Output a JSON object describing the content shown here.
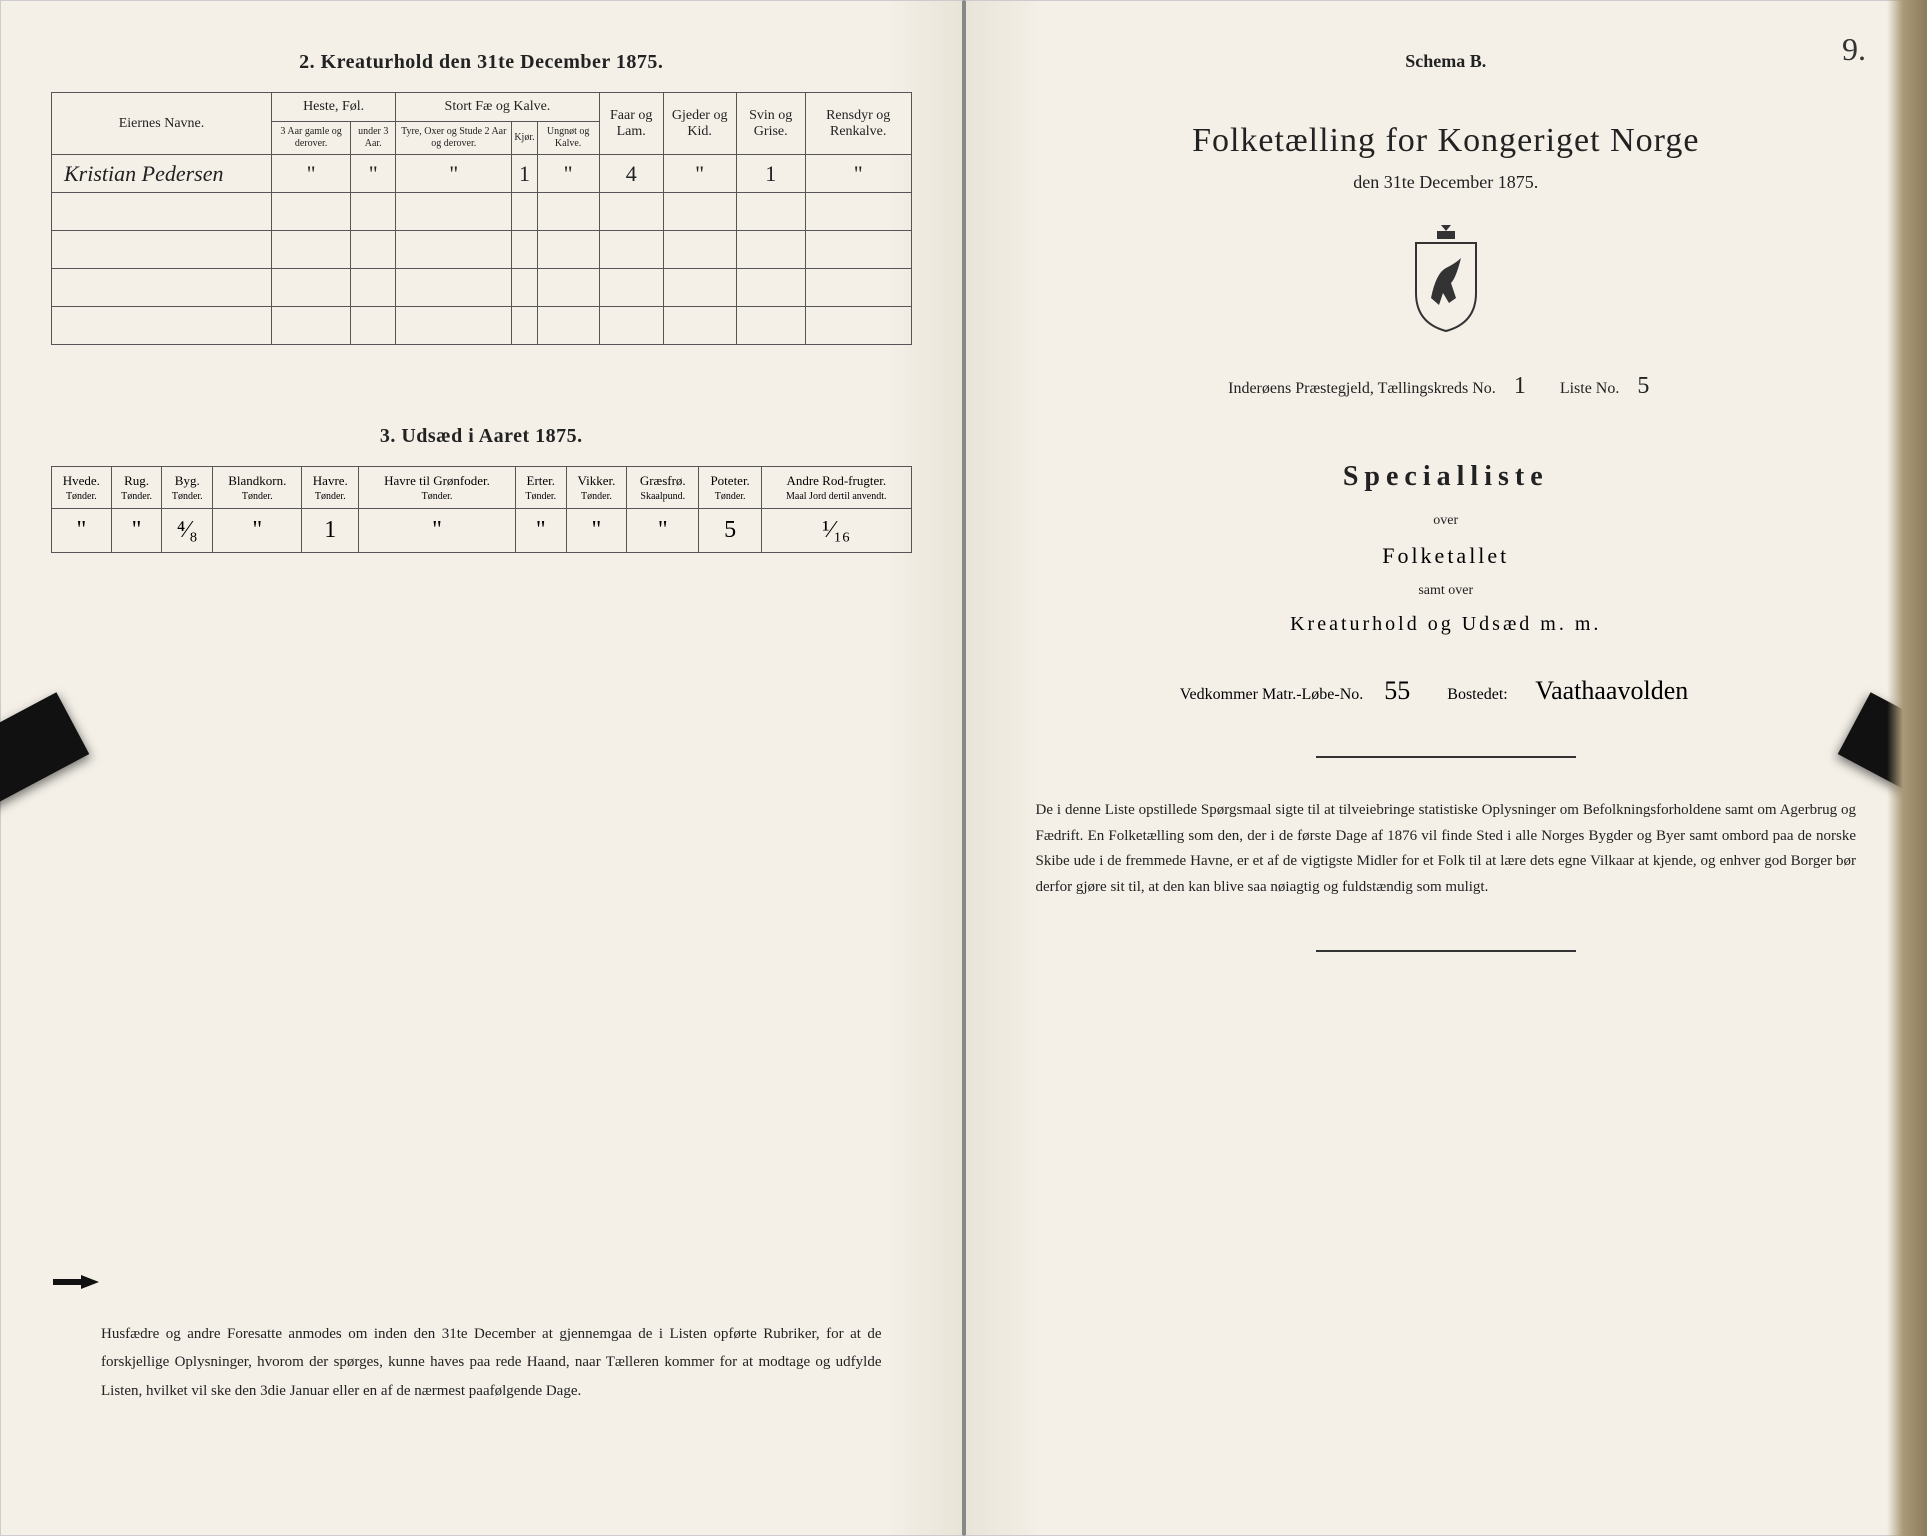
{
  "left": {
    "section2_title": "2.  Kreaturhold den 31te December 1875.",
    "table2": {
      "col_name": "Eiernes Navne.",
      "group_heste": "Heste, Føl.",
      "group_stort": "Stort Fæ og Kalve.",
      "col_faar": "Faar og Lam.",
      "col_gjeder": "Gjeder og Kid.",
      "col_svin": "Svin og Grise.",
      "col_rensdyr": "Rensdyr og Renkalve.",
      "sub_heste_a": "3 Aar gamle og derover.",
      "sub_heste_b": "under 3 Aar.",
      "sub_stort_a": "Tyre, Oxer og Stude 2 Aar og derover.",
      "sub_stort_b": "Kjør.",
      "sub_stort_c": "Ungnøt og Kalve.",
      "row1_name": "Kristian Pedersen",
      "row1": [
        "\"",
        "\"",
        "\"",
        "1",
        "\"",
        "4",
        "\"",
        "1",
        "\""
      ]
    },
    "section3_title": "3.  Udsæd i Aaret 1875.",
    "table3": {
      "headers": [
        {
          "h": "Hvede.",
          "s": "Tønder."
        },
        {
          "h": "Rug.",
          "s": "Tønder."
        },
        {
          "h": "Byg.",
          "s": "Tønder."
        },
        {
          "h": "Blandkorn.",
          "s": "Tønder."
        },
        {
          "h": "Havre.",
          "s": "Tønder."
        },
        {
          "h": "Havre til Grønfoder.",
          "s": "Tønder."
        },
        {
          "h": "Erter.",
          "s": "Tønder."
        },
        {
          "h": "Vikker.",
          "s": "Tønder."
        },
        {
          "h": "Græsfrø.",
          "s": "Skaalpund."
        },
        {
          "h": "Poteter.",
          "s": "Tønder."
        },
        {
          "h": "Andre Rod-frugter.",
          "s": "Maal Jord dertil anvendt."
        }
      ],
      "row": [
        "\"",
        "\"",
        "⁴⁄₈",
        "\"",
        "1",
        "\"",
        "\"",
        "\"",
        "\"",
        "5",
        "¹⁄₁₆"
      ]
    },
    "bottom_text": "Husfædre og andre Foresatte anmodes om inden den 31te December at gjennemgaa de i Listen opførte Rubriker, for at de forskjellige Oplysninger, hvorom der spørges, kunne haves paa rede Haand, naar Tælleren kommer for at modtage og udfylde Listen, hvilket vil ske den 3die Januar eller en af de nærmest paafølgende Dage."
  },
  "right": {
    "page_number": "9.",
    "schema": "Schema B.",
    "main_title": "Folketælling for Kongeriget Norge",
    "sub_title": "den 31te December 1875.",
    "district_prefix": "Inderøens  Præstegjeld,  Tællingskreds No.",
    "district_no": "1",
    "liste_label": "Liste No.",
    "liste_no": "5",
    "special_title": "Specialliste",
    "over": "over",
    "folketallet": "Folketallet",
    "samt_over": "samt over",
    "kreatur_line": "Kreaturhold  og  Udsæd  m.  m.",
    "vedkommer_label": "Vedkommer Matr.-Løbe-No.",
    "matr_no": "55",
    "bosted_label": "Bostedet:",
    "bosted_value": "Vaathaavolden",
    "bottom_text": "De i denne Liste opstillede Spørgsmaal sigte til at tilveiebringe statistiske Oplysninger om Befolkningsforholdene samt om Agerbrug og Fædrift.  En Folketælling som den, der i de første Dage af 1876 vil finde Sted i alle Norges Bygder og Byer samt ombord paa de norske Skibe ude i de fremmede Havne, er et af de vigtigste Midler for et Folk til at lære dets egne Vilkaar at kjende, og enhver god Borger bør derfor gjøre sit til, at den kan blive saa nøiagtig og fuldstændig som muligt."
  }
}
